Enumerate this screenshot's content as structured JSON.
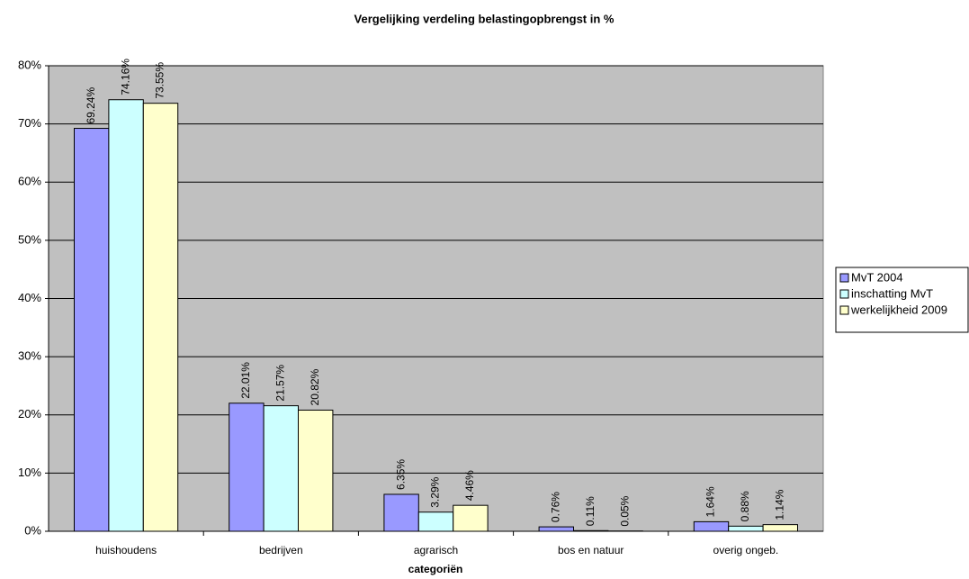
{
  "chart_data": {
    "type": "bar",
    "title": "Vergelijking verdeling belastingopbrengst in %",
    "x_label": "categoriën",
    "categories": [
      "huishoudens",
      "bedrijven",
      "agrarisch",
      "bos en natuur",
      "overig ongeb."
    ],
    "series": [
      {
        "name": "MvT 2004",
        "color": "#9999ff",
        "values": [
          69.24,
          22.01,
          6.35,
          0.76,
          1.64
        ],
        "value_labels": [
          "69.24%",
          "22.01%",
          "6.35%",
          "0.76%",
          "1.64%"
        ]
      },
      {
        "name": "inschatting MvT",
        "color": "#ccffff",
        "values": [
          74.16,
          21.57,
          3.29,
          0.11,
          0.88
        ],
        "value_labels": [
          "74.16%",
          "21.57%",
          "3.29%",
          "0.11%",
          "0.88%"
        ]
      },
      {
        "name": "werkelijkheid 2009",
        "color": "#ffffcc",
        "values": [
          73.55,
          20.82,
          4.46,
          0.05,
          1.14
        ],
        "value_labels": [
          "73.55%",
          "20.82%",
          "4.46%",
          "0.05%",
          "1.14%"
        ]
      }
    ],
    "ylim": [
      0,
      80
    ],
    "yticks": [
      {
        "value": 0,
        "label": "0%"
      },
      {
        "value": 10,
        "label": "10%"
      },
      {
        "value": 20,
        "label": "20%"
      },
      {
        "value": 30,
        "label": "30%"
      },
      {
        "value": 40,
        "label": "40%"
      },
      {
        "value": 50,
        "label": "50%"
      },
      {
        "value": 60,
        "label": "60%"
      },
      {
        "value": 70,
        "label": "70%"
      },
      {
        "value": 80,
        "label": "80%"
      }
    ],
    "grid": true,
    "plot_background": "#c0c0c0",
    "legend": "right"
  }
}
